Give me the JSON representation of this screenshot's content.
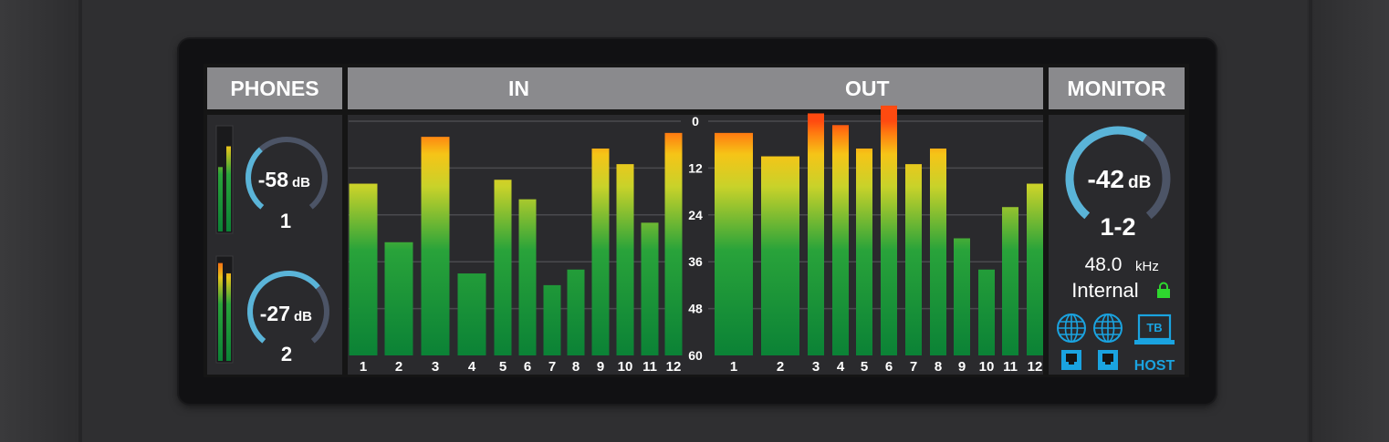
{
  "headers": {
    "phones": "PHONES",
    "in": "IN",
    "out": "OUT",
    "monitor": "MONITOR"
  },
  "phones": [
    {
      "value": "-58",
      "unit": "dB",
      "label": "1",
      "level": 0.35,
      "meter_left": 0.62,
      "meter_right": 0.82,
      "peak_left": false,
      "peak_right": false
    },
    {
      "value": "-27",
      "unit": "dB",
      "label": "2",
      "level": 0.68,
      "meter_left": 0.95,
      "meter_right": 0.85,
      "peak_left": true,
      "peak_right": false
    }
  ],
  "scale": [
    "0",
    "12",
    "24",
    "36",
    "48",
    "60"
  ],
  "inputs": {
    "labels": [
      "1",
      "2",
      "3",
      "4",
      "5",
      "6",
      "7",
      "8",
      "9",
      "10",
      "11",
      "12"
    ],
    "values": [
      -16,
      -31,
      -4,
      -39,
      -15,
      -20,
      -42,
      -38,
      -7,
      -11,
      -26,
      -3
    ]
  },
  "outputs": {
    "labels": [
      "1",
      "2",
      "3",
      "4",
      "5",
      "6",
      "7",
      "8",
      "9",
      "10",
      "11",
      "12"
    ],
    "values": [
      -3,
      -9,
      2,
      -1,
      -7,
      4,
      -11,
      -7,
      -30,
      -38,
      -22,
      -16
    ]
  },
  "monitor": {
    "value": "-42",
    "unit": "dB",
    "label": "1-2",
    "level": 0.62,
    "rate_value": "48.0",
    "rate_unit": "kHz",
    "clock": "Internal",
    "host_label": "HOST",
    "tb_label": "TB"
  },
  "colors": {
    "header_bg": "#8a8a8d",
    "panel_bg": "#2a2a2d",
    "knob_active": "#5ab4d8",
    "knob_inactive": "#4c5466",
    "meter_green": "#0e8a3a",
    "meter_yellow": "#f2c21a",
    "meter_red": "#ff5a10",
    "icon_blue": "#1aa3e0",
    "lock_green": "#2ed82e"
  },
  "icons": [
    "globe-icon",
    "globe-icon",
    "ethernet-port-icon",
    "ethernet-port-icon",
    "thunderbolt-laptop-icon",
    "lock-icon"
  ]
}
